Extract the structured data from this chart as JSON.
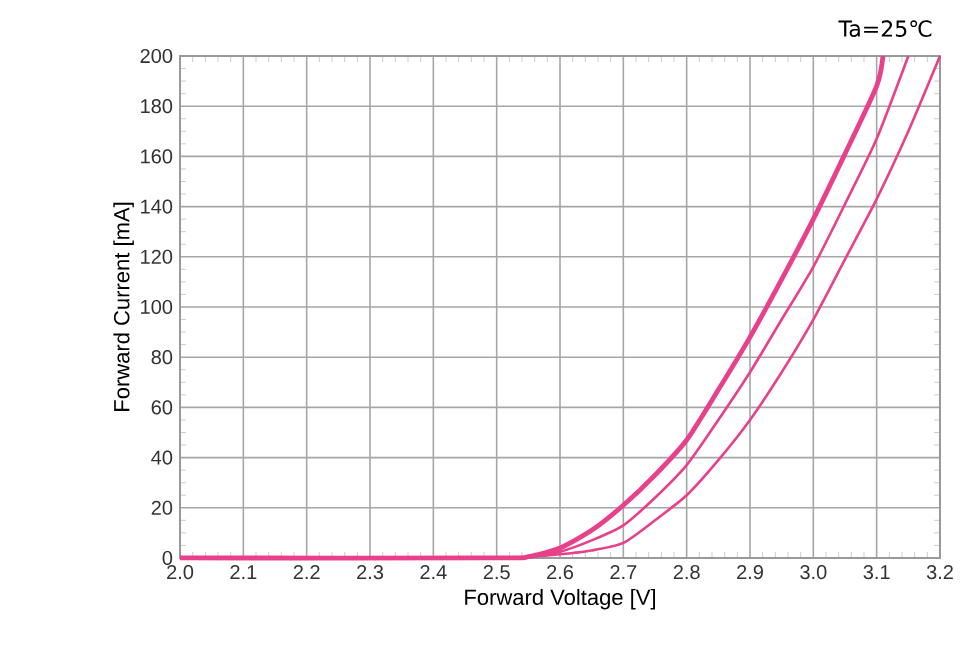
{
  "chart_data": {
    "type": "line",
    "xlabel": "Forward Voltage [V]",
    "ylabel": "Forward Current [mA]",
    "annotations": [
      "Ta=25℃"
    ],
    "xlim": [
      2.0,
      3.2
    ],
    "xticks": [
      {
        "value": 2.0,
        "label": "2.0"
      },
      2.1,
      2.2,
      2.3,
      2.4,
      2.5,
      2.6,
      2.7,
      2.8,
      2.9,
      {
        "value": 3.0,
        "label": "3.0"
      },
      3.1,
      3.2
    ],
    "ylim": [
      0,
      200
    ],
    "yticks": [
      0,
      20,
      40,
      60,
      80,
      100,
      120,
      140,
      160,
      180,
      200
    ],
    "grid": true,
    "marker": "none",
    "line_style": "solid",
    "series": [
      {
        "color": "#e8408a",
        "x": [
          2.0,
          2.5,
          2.55,
          2.6,
          2.65,
          2.7,
          2.75,
          2.8,
          2.85,
          2.9,
          2.95,
          3.0,
          3.05,
          3.1,
          3.11
        ],
        "values": [
          0,
          0,
          0.5,
          4,
          11,
          21,
          33,
          47,
          67,
          88,
          111,
          135,
          161,
          188,
          200
        ]
      },
      {
        "color": "#e8408a",
        "x": [
          2.0,
          2.5,
          2.55,
          2.6,
          2.65,
          2.7,
          2.75,
          2.8,
          2.85,
          2.9,
          2.95,
          3.0,
          3.05,
          3.1,
          3.15
        ],
        "values": [
          0,
          0,
          0.5,
          2.5,
          7,
          13,
          24,
          37,
          55,
          74,
          95,
          116,
          141,
          167,
          200
        ]
      },
      {
        "color": "#e8408a",
        "x": [
          2.0,
          2.5,
          2.55,
          2.6,
          2.65,
          2.7,
          2.75,
          2.8,
          2.85,
          2.9,
          2.95,
          3.0,
          3.05,
          3.1,
          3.15,
          3.2
        ],
        "values": [
          0,
          0,
          0.5,
          1.5,
          3,
          6,
          15,
          25,
          39,
          55,
          74,
          95,
          119,
          143,
          170,
          200
        ]
      }
    ]
  }
}
